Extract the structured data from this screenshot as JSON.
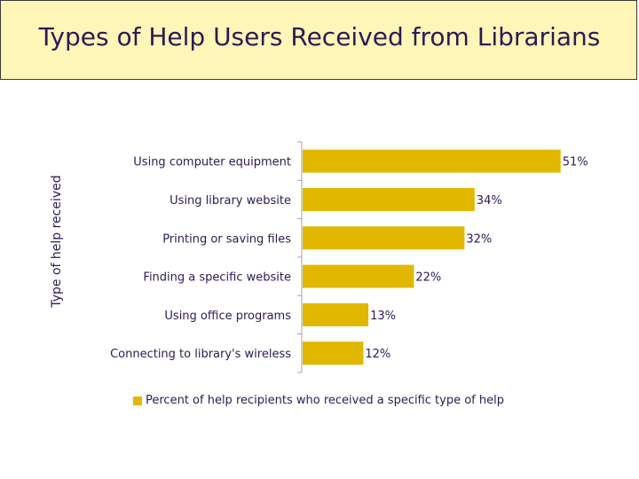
{
  "title": "Types of Help Users Received from Librarians",
  "chart_data": {
    "type": "bar",
    "orientation": "horizontal",
    "ylabel": "Type of help received",
    "categories": [
      "Using computer equipment",
      "Using library website",
      "Printing or saving files",
      "Finding a specific website",
      "Using office programs",
      "Connecting to library's wireless"
    ],
    "series": [
      {
        "name": "Percent of help recipients who received a specific type of help",
        "values": [
          51,
          34,
          32,
          22,
          13,
          12
        ],
        "labels": [
          "51%",
          "34%",
          "32%",
          "22%",
          "13%",
          "12%"
        ]
      }
    ],
    "grid": false,
    "legend_position": "bottom",
    "bar_color": "#e1b700",
    "banner_color": "#fff6b8",
    "text_color": "#2e1a52"
  }
}
